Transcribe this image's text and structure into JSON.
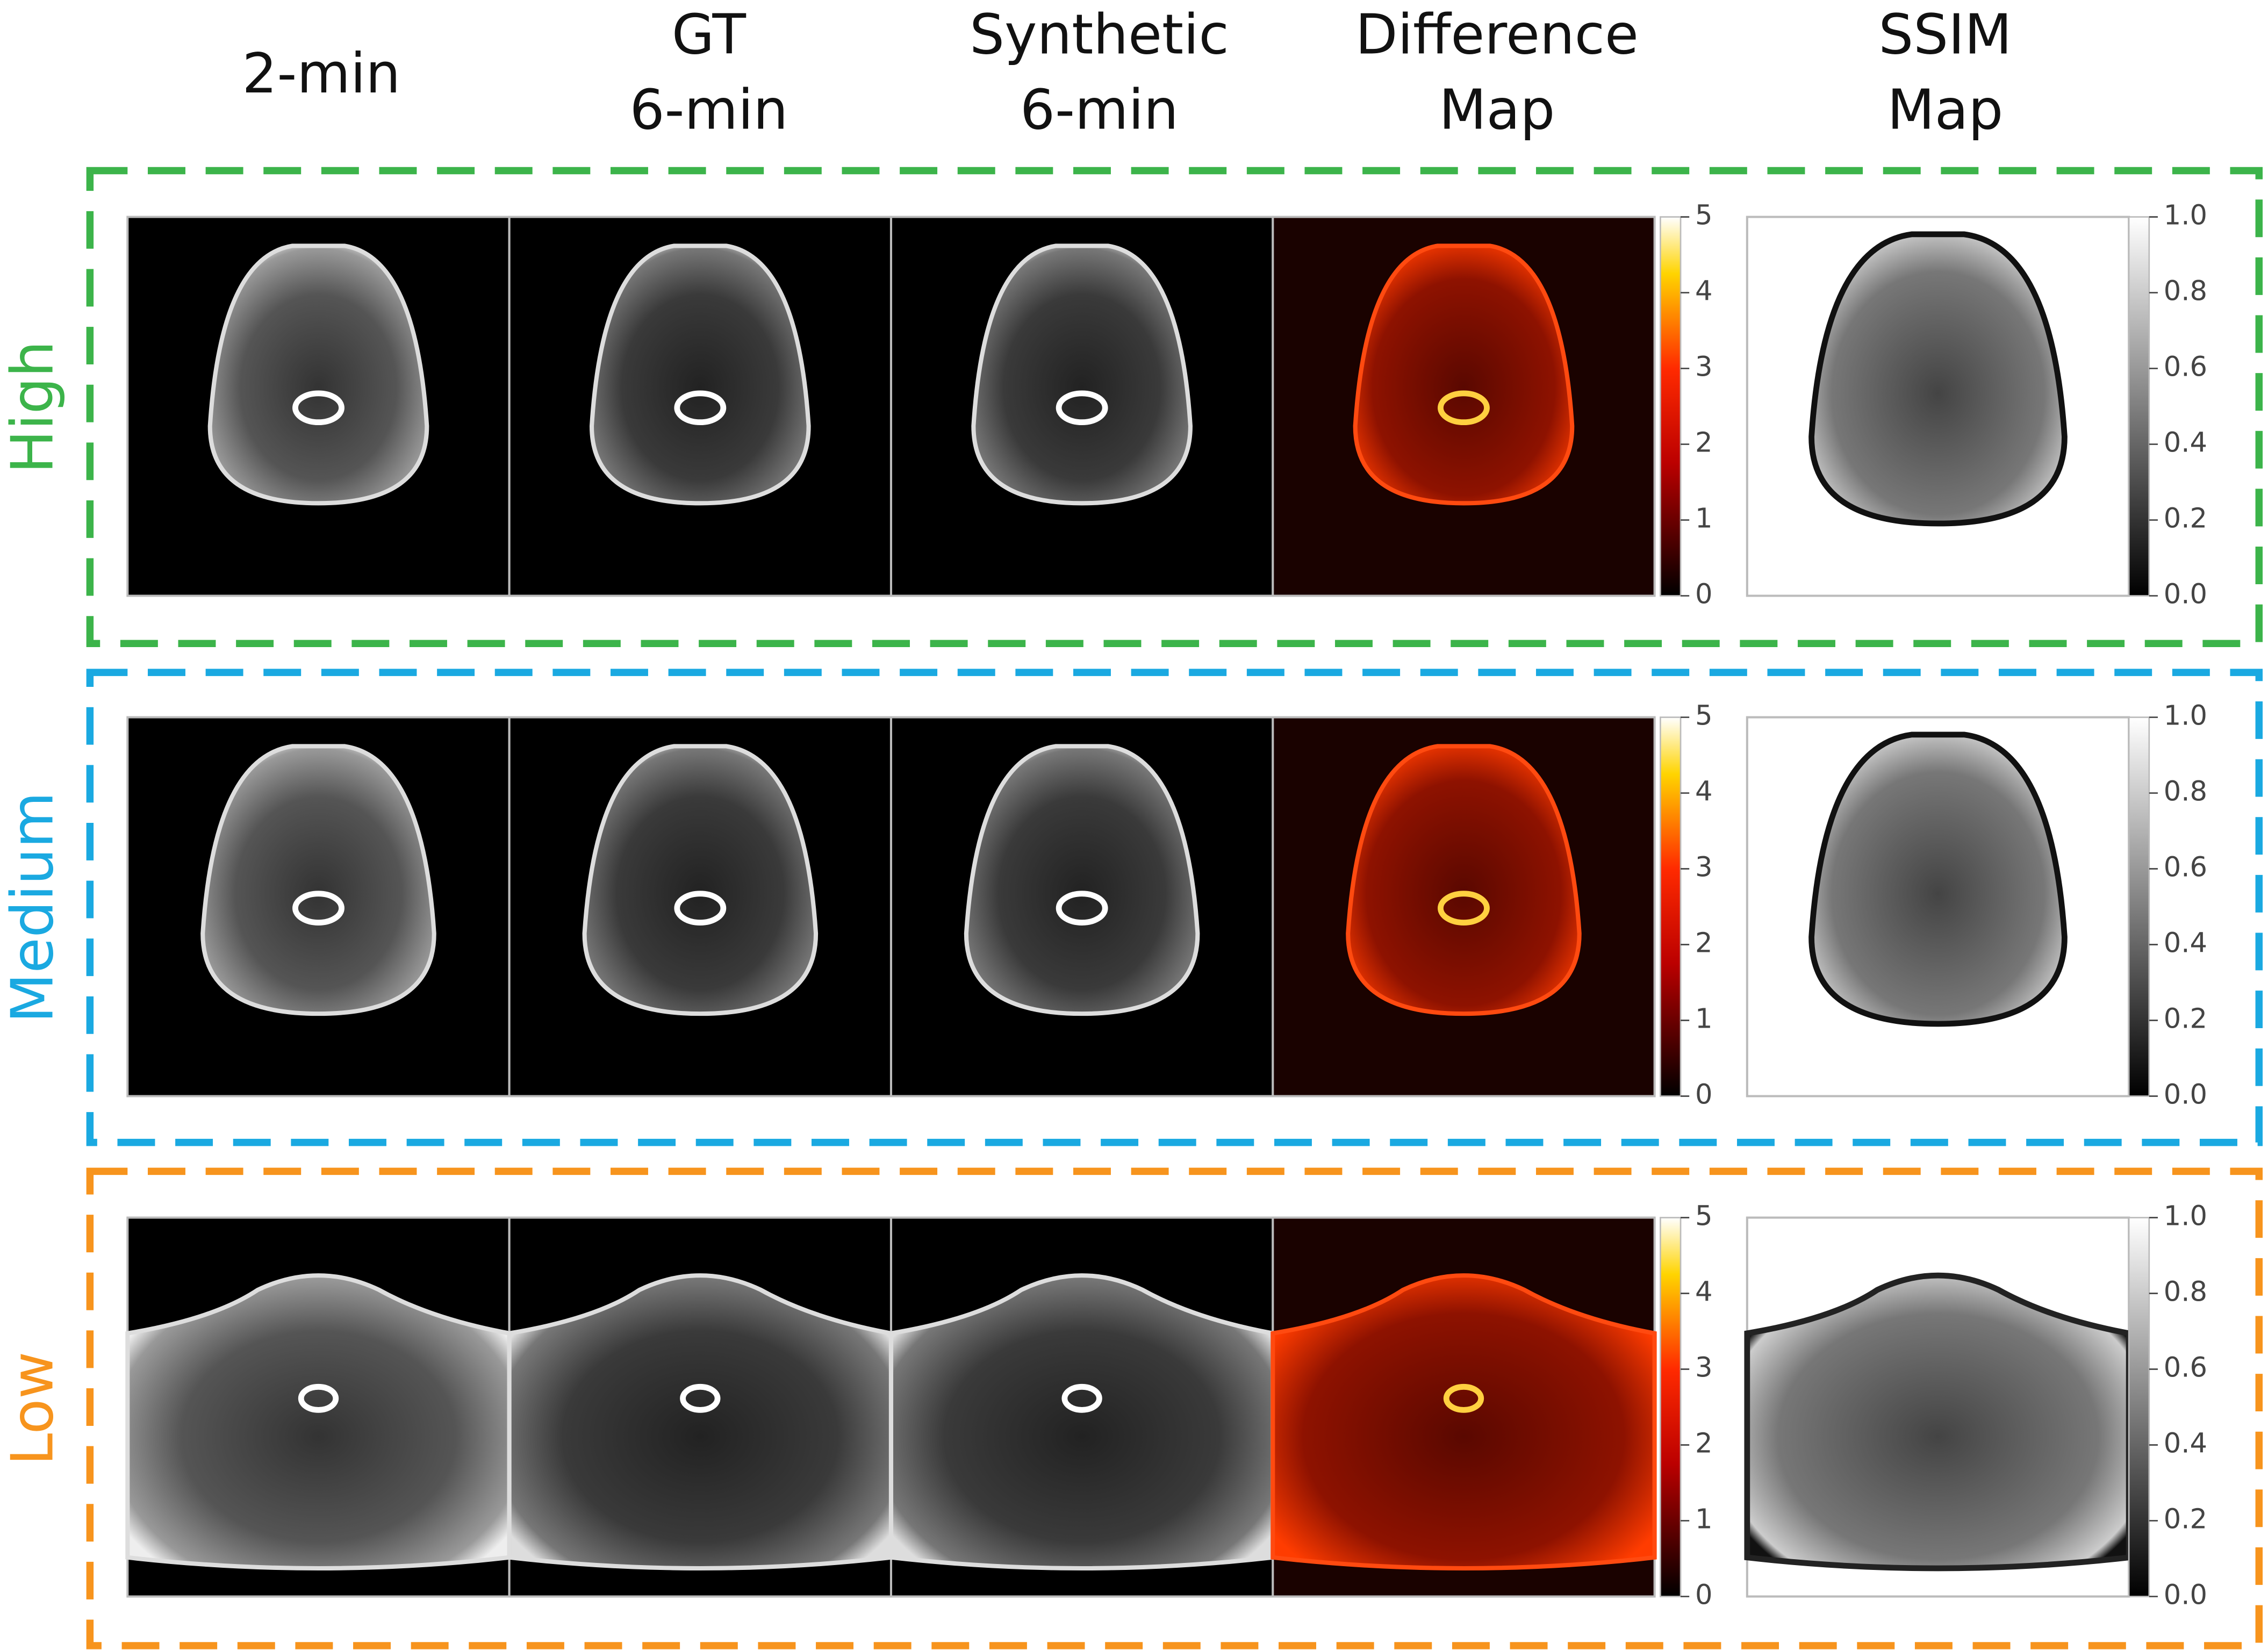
{
  "figure": {
    "columns": [
      [
        "2-min"
      ],
      [
        "GT",
        "6-min"
      ],
      [
        "Synthetic",
        "6-min"
      ],
      [
        "Difference",
        "Map"
      ],
      [
        "SSIM",
        "Map"
      ]
    ],
    "rows": [
      {
        "label": "High",
        "color": "#3cb44a"
      },
      {
        "label": "Medium",
        "color": "#1aa9e1"
      },
      {
        "label": "Low",
        "color": "#f7941d"
      }
    ],
    "difference_colorbar": {
      "range": [
        0,
        5
      ],
      "ticks": [
        0,
        1,
        2,
        3,
        4,
        5
      ]
    },
    "ssim_colorbar": {
      "range": [
        0,
        1
      ],
      "ticks": [
        {
          "value": 0,
          "label": "0.0"
        },
        {
          "value": 0.2,
          "label": "0.2"
        },
        {
          "value": 0.4,
          "label": "0.4"
        },
        {
          "value": 0.6,
          "label": "0.6"
        },
        {
          "value": 0.8,
          "label": "0.8"
        },
        {
          "value": 1,
          "label": "1.0"
        }
      ]
    }
  }
}
